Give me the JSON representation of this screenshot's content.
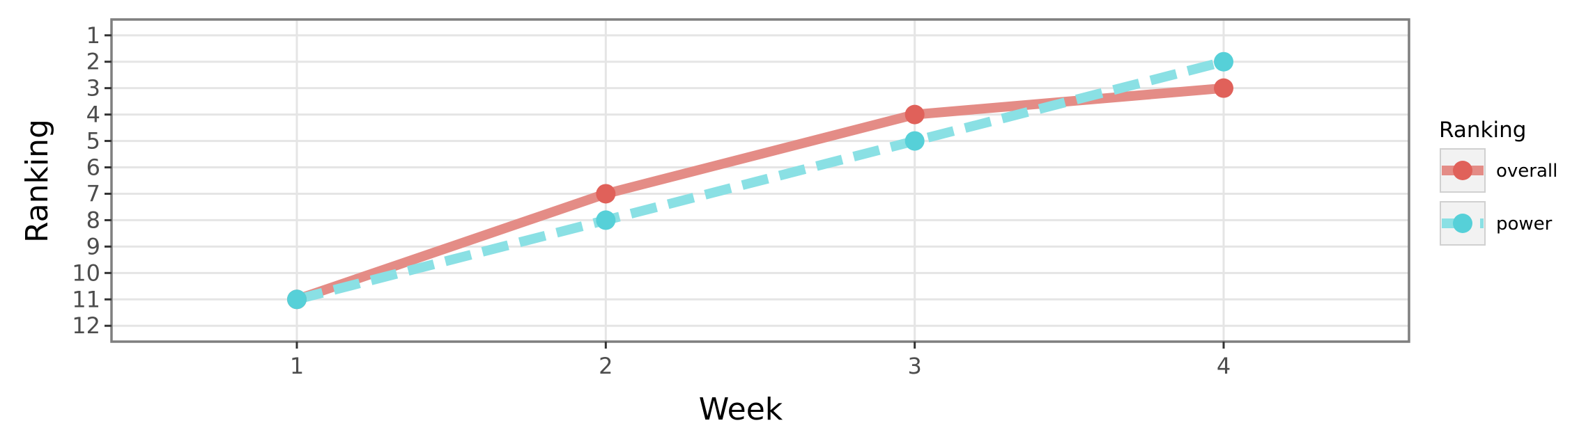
{
  "chart_data": {
    "type": "line",
    "x": [
      1,
      2,
      3,
      4
    ],
    "x_tick_labels": [
      "1",
      "2",
      "3",
      "4"
    ],
    "y_tick_labels": [
      "1",
      "2",
      "3",
      "4",
      "5",
      "6",
      "7",
      "8",
      "9",
      "10",
      "11",
      "12"
    ],
    "xlabel": "Week",
    "ylabel": "Ranking",
    "xlim": [
      0.4,
      4.6
    ],
    "ylim": [
      12.6,
      0.4
    ],
    "y_reversed": true,
    "grid": true,
    "legend": {
      "title": "Ranking",
      "position": "right"
    },
    "series": [
      {
        "name": "overall",
        "values": [
          11,
          7,
          4,
          3
        ],
        "color": "#e0615a",
        "line_color": "#e48c86",
        "line_style": "solid"
      },
      {
        "name": "power",
        "values": [
          11,
          8,
          5,
          2
        ],
        "color": "#56d0d8",
        "line_color": "#8ae0e4",
        "line_style": "dashed"
      }
    ]
  }
}
